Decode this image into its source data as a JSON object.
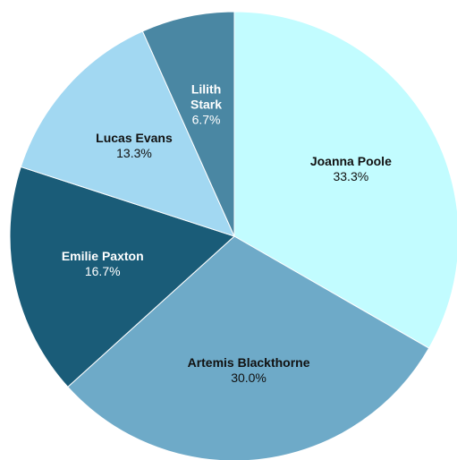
{
  "chart_data": {
    "type": "pie",
    "categories": [
      "Joanna Poole",
      "Artemis Blackthorne",
      "Emilie Paxton",
      "Lucas Evans",
      "Lilith Stark"
    ],
    "values": [
      33.3,
      30.0,
      16.7,
      13.3,
      6.7
    ],
    "value_labels": [
      "33.3%",
      "30.0%",
      "16.7%",
      "13.3%",
      "6.7%"
    ],
    "colors": [
      "#c2fcff",
      "#6eaac8",
      "#1a5c78",
      "#a2d8f2",
      "#4a87a3"
    ]
  }
}
